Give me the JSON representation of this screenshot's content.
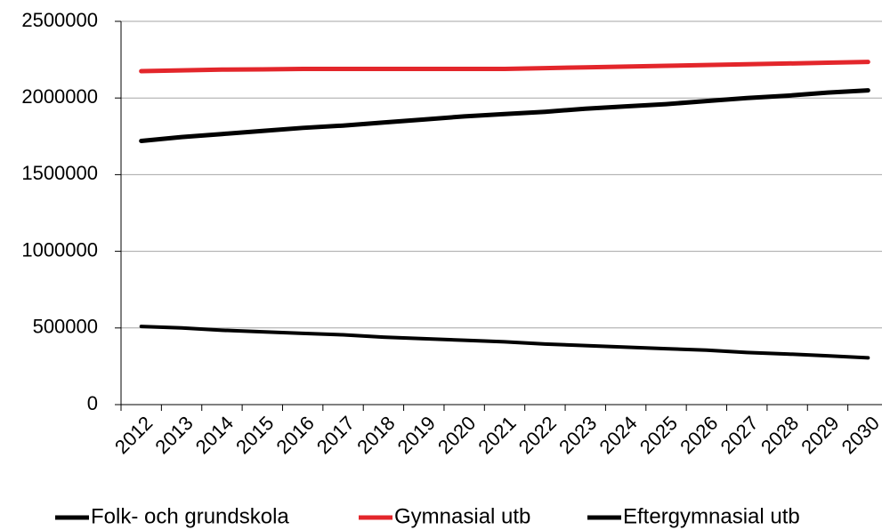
{
  "chart_data": {
    "type": "line",
    "categories": [
      "2012",
      "2013",
      "2014",
      "2015",
      "2016",
      "2017",
      "2018",
      "2019",
      "2020",
      "2021",
      "2022",
      "2023",
      "2024",
      "2025",
      "2026",
      "2027",
      "2028",
      "2029",
      "2030"
    ],
    "series": [
      {
        "name": "Folk- och grundskola",
        "color": "#000000",
        "values": [
          510000,
          500000,
          485000,
          475000,
          465000,
          455000,
          440000,
          430000,
          420000,
          410000,
          395000,
          385000,
          375000,
          365000,
          355000,
          340000,
          330000,
          318000,
          305000
        ]
      },
      {
        "name": "Gymnasial utb",
        "color": "#e3262b",
        "values": [
          2175000,
          2180000,
          2185000,
          2187000,
          2190000,
          2190000,
          2190000,
          2190000,
          2190000,
          2190000,
          2195000,
          2200000,
          2205000,
          2210000,
          2215000,
          2220000,
          2225000,
          2230000,
          2235000
        ]
      },
      {
        "name": "Eftergymnasial utb",
        "color": "#000000",
        "values": [
          1720000,
          1745000,
          1765000,
          1785000,
          1805000,
          1820000,
          1840000,
          1860000,
          1880000,
          1895000,
          1910000,
          1930000,
          1945000,
          1960000,
          1980000,
          2000000,
          2015000,
          2035000,
          2050000
        ]
      }
    ],
    "ylim": [
      0,
      2500000
    ],
    "yticks": [
      0,
      500000,
      1000000,
      1500000,
      2000000,
      2500000
    ],
    "grid": true,
    "legend": "bottom"
  }
}
